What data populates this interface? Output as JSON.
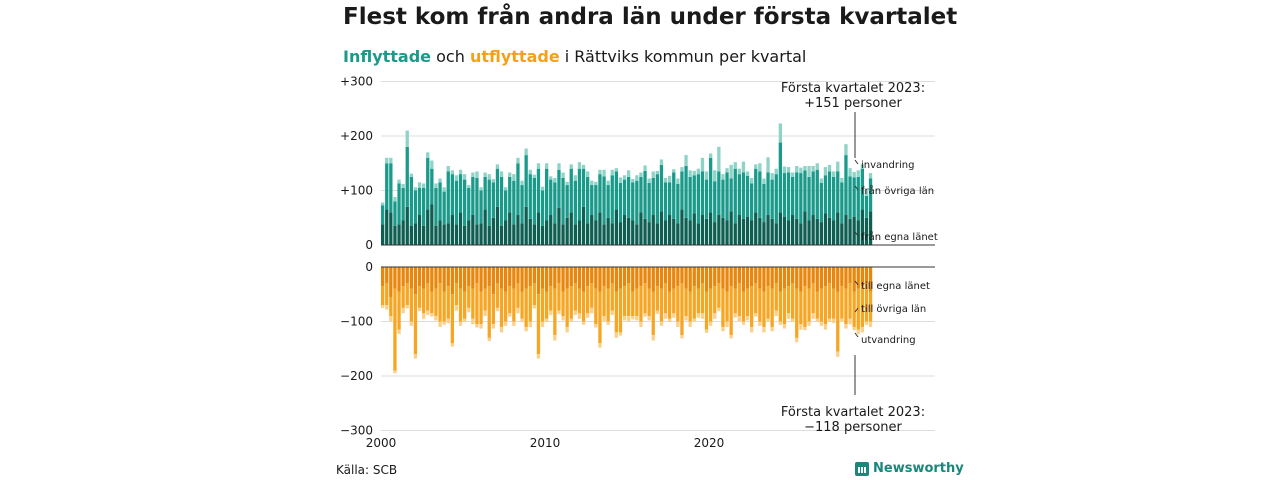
{
  "header": {
    "title": "Flest kom från andra län under första kvartalet",
    "subtitle_in": "Inflyttade",
    "subtitle_mid": " och ",
    "subtitle_out": "utflyttade",
    "subtitle_rest": " i Rättviks kommun per kvartal"
  },
  "footer": {
    "source": "Källa: SCB",
    "brand": "Newsworthy"
  },
  "colors": {
    "in_own": "#0e5e52",
    "in_other": "#1a9a8a",
    "in_abroad": "#8fd3c7",
    "out_own": "#e8870c",
    "out_other": "#f6a623",
    "out_abroad": "#fbd08a",
    "grid": "#dddddd",
    "axis": "#333333"
  },
  "chart_data": [
    {
      "type": "bar",
      "stacked": true,
      "x_start_year": 2000,
      "x_ticks": [
        "2000",
        "2010",
        "2020"
      ],
      "yticks": [
        {
          "v": 300,
          "label": "+300"
        },
        {
          "v": 200,
          "label": "+200"
        },
        {
          "v": 100,
          "label": "+100"
        },
        {
          "v": 0,
          "label": "0"
        }
      ],
      "ylim": [
        0,
        300
      ],
      "series_names": [
        "från egna länet",
        "från övriga län",
        "invandring"
      ],
      "own": [
        38,
        65,
        60,
        35,
        38,
        45,
        70,
        35,
        40,
        55,
        35,
        65,
        75,
        35,
        45,
        38,
        40,
        55,
        38,
        60,
        35,
        45,
        55,
        38,
        40,
        65,
        35,
        50,
        70,
        35,
        45,
        60,
        38,
        55,
        40,
        70,
        48,
        38,
        60,
        35,
        45,
        55,
        40,
        68,
        38,
        50,
        60,
        38,
        45,
        70,
        40,
        55,
        45,
        60,
        38,
        50,
        40,
        65,
        42,
        55,
        50,
        45,
        38,
        60,
        48,
        42,
        55,
        40,
        62,
        45,
        55,
        48,
        40,
        65,
        50,
        45,
        58,
        40,
        55,
        48,
        60,
        42,
        55,
        50,
        45,
        62,
        40,
        55,
        48,
        52,
        45,
        60,
        50,
        42,
        55,
        48,
        40,
        60,
        52,
        45,
        55,
        48,
        40,
        62,
        45,
        55,
        48,
        42,
        58,
        50,
        45,
        60,
        40,
        55,
        48,
        52,
        45,
        65,
        50,
        62
      ],
      "other": [
        35,
        85,
        90,
        45,
        75,
        60,
        110,
        90,
        60,
        50,
        70,
        95,
        65,
        70,
        70,
        60,
        95,
        75,
        80,
        70,
        85,
        60,
        70,
        85,
        60,
        60,
        85,
        65,
        70,
        90,
        55,
        65,
        80,
        95,
        70,
        95,
        82,
        85,
        80,
        65,
        95,
        65,
        75,
        70,
        85,
        60,
        80,
        80,
        95,
        70,
        85,
        55,
        65,
        70,
        88,
        60,
        88,
        70,
        72,
        65,
        75,
        70,
        80,
        65,
        88,
        72,
        68,
        90,
        85,
        70,
        60,
        85,
        72,
        70,
        95,
        80,
        70,
        90,
        80,
        72,
        100,
        75,
        80,
        70,
        88,
        60,
        100,
        75,
        85,
        75,
        68,
        80,
        85,
        70,
        78,
        72,
        90,
        128,
        80,
        88,
        70,
        85,
        92,
        75,
        80,
        80,
        90,
        72,
        70,
        85,
        80,
        75,
        75,
        110,
        78,
        72,
        80,
        75,
        40,
        60
      ],
      "abroad": [
        5,
        10,
        10,
        8,
        7,
        7,
        30,
        6,
        6,
        10,
        8,
        10,
        15,
        8,
        7,
        8,
        10,
        7,
        10,
        8,
        10,
        5,
        8,
        12,
        6,
        8,
        10,
        6,
        8,
        10,
        6,
        8,
        12,
        10,
        8,
        12,
        8,
        6,
        10,
        7,
        10,
        6,
        8,
        12,
        10,
        6,
        8,
        10,
        12,
        7,
        10,
        8,
        6,
        8,
        12,
        8,
        10,
        6,
        10,
        8,
        12,
        6,
        10,
        8,
        10,
        8,
        12,
        6,
        10,
        8,
        12,
        6,
        10,
        8,
        20,
        12,
        8,
        10,
        25,
        15,
        8,
        20,
        45,
        10,
        8,
        25,
        12,
        10,
        20,
        8,
        10,
        8,
        15,
        10,
        28,
        12,
        10,
        35,
        12,
        10,
        8,
        12,
        10,
        8,
        20,
        10,
        12,
        8,
        15,
        12,
        10,
        18,
        8,
        20,
        15,
        10,
        12,
        8,
        10,
        10
      ]
    },
    {
      "type": "bar",
      "stacked": true,
      "x_start_year": 2000,
      "yticks": [
        {
          "v": 0,
          "label": "0"
        },
        {
          "v": -100,
          "label": "−100"
        },
        {
          "v": -200,
          "label": "−200"
        },
        {
          "v": -300,
          "label": "−300"
        }
      ],
      "ylim": [
        -300,
        0
      ],
      "series_names": [
        "till egna länet",
        "till övriga län",
        "utvandring"
      ],
      "own": [
        -35,
        -30,
        -55,
        -40,
        -45,
        -35,
        -30,
        -40,
        -50,
        -35,
        -40,
        -30,
        -45,
        -40,
        -30,
        -45,
        -35,
        -50,
        -30,
        -40,
        -45,
        -35,
        -40,
        -30,
        -45,
        -40,
        -35,
        -50,
        -30,
        -40,
        -45,
        -35,
        -40,
        -30,
        -45,
        -40,
        -35,
        -30,
        -50,
        -40,
        -45,
        -35,
        -40,
        -30,
        -45,
        -40,
        -35,
        -30,
        -40,
        -45,
        -35,
        -30,
        -40,
        -45,
        -35,
        -40,
        -30,
        -45,
        -40,
        -35,
        -30,
        -45,
        -40,
        -35,
        -30,
        -40,
        -45,
        -35,
        -40,
        -30,
        -45,
        -40,
        -35,
        -30,
        -40,
        -45,
        -35,
        -40,
        -30,
        -45,
        -40,
        -35,
        -30,
        -40,
        -45,
        -35,
        -40,
        -30,
        -45,
        -40,
        -35,
        -30,
        -40,
        -45,
        -35,
        -40,
        -30,
        -45,
        -40,
        -35,
        -30,
        -40,
        -45,
        -35,
        -40,
        -30,
        -45,
        -40,
        -35,
        -30,
        -40,
        -45,
        -35,
        -40,
        -30,
        -45,
        -40,
        -35,
        -30,
        -45
      ],
      "other": [
        -35,
        -40,
        -35,
        -150,
        -70,
        -40,
        -40,
        -60,
        -110,
        -40,
        -45,
        -50,
        -40,
        -50,
        -70,
        -55,
        -60,
        -90,
        -40,
        -60,
        -50,
        -40,
        -55,
        -75,
        -60,
        -40,
        -95,
        -55,
        -45,
        -70,
        -55,
        -50,
        -60,
        -45,
        -50,
        -70,
        -65,
        -40,
        -110,
        -60,
        -50,
        -45,
        -85,
        -50,
        -45,
        -70,
        -60,
        -50,
        -45,
        -55,
        -50,
        -45,
        -65,
        -95,
        -55,
        -60,
        -50,
        -75,
        -80,
        -55,
        -60,
        -45,
        -50,
        -65,
        -55,
        -50,
        -80,
        -45,
        -60,
        -55,
        -50,
        -45,
        -65,
        -95,
        -50,
        -55,
        -60,
        -45,
        -55,
        -70,
        -60,
        -50,
        -45,
        -70,
        -55,
        -90,
        -45,
        -60,
        -55,
        -50,
        -75,
        -55,
        -60,
        -65,
        -60,
        -70,
        -50,
        -55,
        -65,
        -50,
        -65,
        -90,
        -60,
        -75,
        -60,
        -55,
        -50,
        -60,
        -70,
        -65,
        -55,
        -110,
        -60,
        -65,
        -65,
        -65,
        -75,
        -75,
        -70,
        -55
      ],
      "abroad": [
        -5,
        -8,
        -10,
        -5,
        -8,
        -10,
        -6,
        -8,
        -8,
        -6,
        -10,
        -8,
        -6,
        -8,
        -10,
        -6,
        -8,
        -6,
        -10,
        -8,
        -6,
        -8,
        -10,
        -6,
        -8,
        -10,
        -6,
        -8,
        -6,
        -10,
        -8,
        -6,
        -8,
        -10,
        -6,
        -8,
        -10,
        -6,
        -8,
        -10,
        -6,
        -8,
        -10,
        -6,
        -8,
        -10,
        -6,
        -8,
        -10,
        -6,
        -8,
        -10,
        -6,
        -8,
        -10,
        -6,
        -8,
        -10,
        -6,
        -8,
        -10,
        -6,
        -8,
        -10,
        -6,
        -8,
        -10,
        -6,
        -8,
        -10,
        -6,
        -8,
        -10,
        -6,
        -8,
        -10,
        -6,
        -8,
        -10,
        -6,
        -8,
        -10,
        -6,
        -8,
        -10,
        -6,
        -8,
        -10,
        -6,
        -8,
        -10,
        -6,
        -8,
        -10,
        -6,
        -8,
        -10,
        -6,
        -8,
        -10,
        -6,
        -8,
        -10,
        -6,
        -8,
        -10,
        -6,
        -8,
        -10,
        -6,
        -8,
        -10,
        -6,
        -8,
        -10,
        -6,
        -8,
        -10,
        -6,
        -10
      ]
    }
  ],
  "annotations": {
    "top_label_1": "Första kvartalet 2023:",
    "top_label_2": "+151 personer",
    "bottom_label_1": "Första kvartalet 2023:",
    "bottom_label_2": "−118 personer",
    "in_abroad": "invandring",
    "in_other": "från övriga län",
    "in_own": "från egna länet",
    "out_own": "till egna länet",
    "out_other": "till övriga län",
    "out_abroad": "utvandring"
  }
}
